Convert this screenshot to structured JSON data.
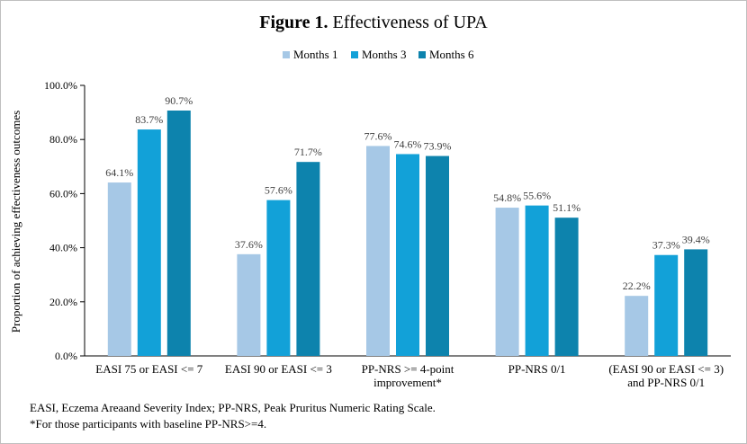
{
  "title_bold": "Figure 1.",
  "title_rest": " Effectiveness of UPA",
  "footnotes": [
    "EASI, Eczema Areaand Severity Index; PP-NRS, Peak Pruritus Numeric Rating Scale.",
    "*For those participants with baseline PP-NRS>=4."
  ],
  "chart_data": {
    "type": "bar",
    "title": "Figure 1. Effectiveness of UPA",
    "xlabel": "",
    "ylabel": "Proportion of achieving effectiveness outcomes",
    "ylim": [
      0,
      100
    ],
    "yticks": [
      0,
      20,
      40,
      60,
      80,
      100
    ],
    "ytick_labels": [
      "0.0%",
      "20.0%",
      "40.0%",
      "60.0%",
      "80.0%",
      "100.0%"
    ],
    "legend_position": "top-center",
    "categories": [
      [
        "EASI 75 or EASI <= 7"
      ],
      [
        "EASI 90 or EASI <= 3"
      ],
      [
        "PP-NRS >= 4-point",
        "improvement*"
      ],
      [
        "PP-NRS 0/1"
      ],
      [
        "(EASI 90 or EASI <= 3)",
        "and PP-NRS 0/1"
      ]
    ],
    "series": [
      {
        "name": "Months 1",
        "color": "#a6c8e6",
        "values": [
          64.1,
          37.6,
          77.6,
          54.8,
          22.2
        ],
        "labels": [
          "64.1%",
          "37.6%",
          "77.6%",
          "54.8%",
          "22.2%"
        ]
      },
      {
        "name": "Months 3",
        "color": "#12a1d8",
        "values": [
          83.7,
          57.6,
          74.6,
          55.6,
          37.3
        ],
        "labels": [
          "83.7%",
          "57.6%",
          "74.6%",
          "55.6%",
          "37.3%"
        ]
      },
      {
        "name": "Months 6",
        "color": "#0d83ad",
        "values": [
          90.7,
          71.7,
          73.9,
          51.1,
          39.4
        ],
        "labels": [
          "90.7%",
          "71.7%",
          "73.9%",
          "51.1%",
          "39.4%"
        ]
      }
    ]
  }
}
